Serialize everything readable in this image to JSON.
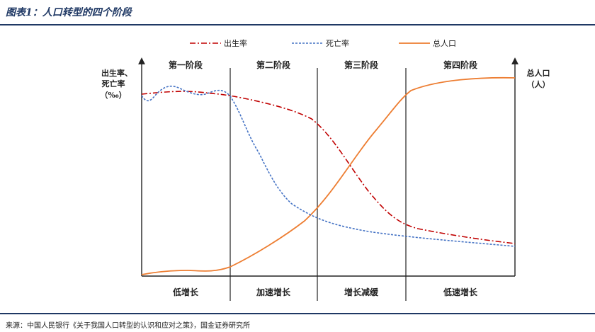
{
  "title": "图表1：人口转型的四个阶段",
  "legend": {
    "birth": "出生率",
    "death": "死亡率",
    "population": "总人口"
  },
  "left_axis": [
    "出生率、",
    "死亡率",
    "（‰）"
  ],
  "right_axis": [
    "总人口",
    "（人）"
  ],
  "stages": [
    "第一阶段",
    "第二阶段",
    "第三阶段",
    "第四阶段"
  ],
  "phases": [
    "低增长",
    "加速增长",
    "增长减缓",
    "低速增长"
  ],
  "source": "来源：中国人民银行《关于我国人口转型的认识和应对之策》，国金证券研究所",
  "colors": {
    "birth": "#c00000",
    "death": "#4472c4",
    "population": "#ed7d31",
    "title": "#1f3864"
  }
}
